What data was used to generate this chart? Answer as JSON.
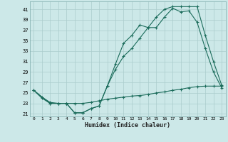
{
  "xlabel": "Humidex (Indice chaleur)",
  "bg_color": "#cce8e8",
  "grid_color": "#aacccc",
  "line_color": "#1a6b5a",
  "xlim": [
    -0.5,
    23.5
  ],
  "ylim": [
    20.5,
    42.5
  ],
  "xticks": [
    0,
    1,
    2,
    3,
    4,
    5,
    6,
    7,
    8,
    9,
    10,
    11,
    12,
    13,
    14,
    15,
    16,
    17,
    18,
    19,
    20,
    21,
    22,
    23
  ],
  "yticks": [
    21,
    23,
    25,
    27,
    29,
    31,
    33,
    35,
    37,
    39,
    41
  ],
  "line1_x": [
    0,
    1,
    2,
    3,
    4,
    5,
    6,
    7,
    8,
    9,
    10,
    11,
    12,
    13,
    14,
    15,
    16,
    17,
    18,
    19,
    20,
    21,
    22,
    23
  ],
  "line1_y": [
    25.5,
    24.0,
    23.0,
    23.0,
    23.0,
    21.2,
    21.2,
    22.0,
    22.5,
    26.3,
    30.5,
    34.5,
    36.0,
    38.0,
    37.5,
    37.5,
    39.5,
    41.2,
    40.5,
    40.7,
    38.5,
    33.5,
    29.0,
    26.0
  ],
  "line2_x": [
    0,
    2,
    3,
    4,
    5,
    6,
    7,
    8,
    9,
    10,
    11,
    12,
    13,
    14,
    15,
    16,
    17,
    18,
    19,
    20,
    21,
    22,
    23
  ],
  "line2_y": [
    25.5,
    23.0,
    23.0,
    23.0,
    21.2,
    21.2,
    22.0,
    22.5,
    26.3,
    29.5,
    32.0,
    33.5,
    35.5,
    37.5,
    39.5,
    41.0,
    41.5,
    41.5,
    41.5,
    41.5,
    36.0,
    31.0,
    26.5
  ],
  "line3_x": [
    0,
    1,
    2,
    3,
    4,
    5,
    6,
    7,
    8,
    9,
    10,
    11,
    12,
    13,
    14,
    15,
    16,
    17,
    18,
    19,
    20,
    21,
    22,
    23
  ],
  "line3_y": [
    25.5,
    24.2,
    23.2,
    23.0,
    23.0,
    23.0,
    23.0,
    23.2,
    23.5,
    23.8,
    24.0,
    24.2,
    24.4,
    24.5,
    24.7,
    25.0,
    25.2,
    25.5,
    25.7,
    26.0,
    26.2,
    26.3,
    26.3,
    26.3
  ]
}
